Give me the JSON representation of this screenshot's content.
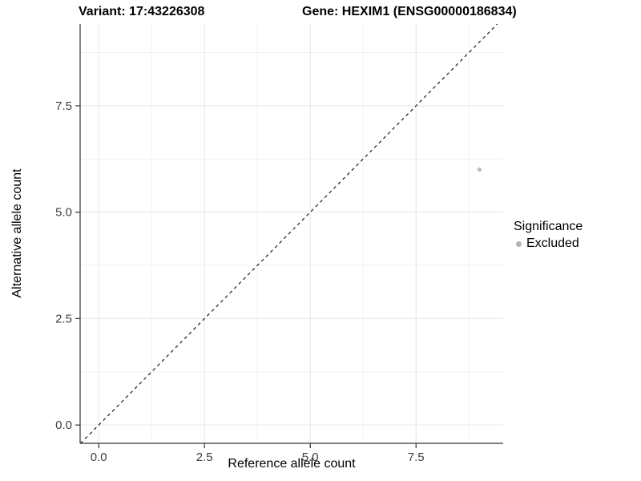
{
  "header": {
    "variant_title": "Variant: 17:43226308",
    "gene_title": "Gene: HEXIM1 (ENSG00000186834)"
  },
  "chart_data": {
    "type": "scatter",
    "xlabel": "Reference allele count",
    "ylabel": "Alternative allele count",
    "xlim": [
      -0.44,
      9.56
    ],
    "ylim": [
      -0.43,
      9.42
    ],
    "x_ticks": [
      0,
      2.5,
      5,
      7.5
    ],
    "x_tick_labels": [
      "0.0",
      "2.5",
      "5.0",
      "7.5"
    ],
    "y_ticks": [
      0,
      2.5,
      5,
      7.5
    ],
    "y_tick_labels": [
      "0.0",
      "2.5",
      "5.0",
      "7.5"
    ],
    "x_minor_ticks": [
      1.25,
      3.75,
      6.25,
      8.75
    ],
    "y_minor_ticks": [
      1.25,
      3.75,
      6.25,
      8.75
    ],
    "grid": "major+minor",
    "series": [
      {
        "name": "Excluded",
        "color": "#bfbfbf",
        "points": [
          {
            "x": 9,
            "y": 6
          }
        ]
      }
    ],
    "reference_line": {
      "kind": "identity",
      "slope": 1,
      "intercept": 0,
      "linetype": "dashed",
      "color": "#1a1a1a"
    },
    "legend": {
      "title": "Significance",
      "position": "right",
      "items": [
        {
          "label": "Excluded",
          "color": "#b3b3b3"
        }
      ]
    },
    "colors": {
      "grid_major": "#e6e6e6",
      "grid_minor": "#f1f1f1",
      "axis_line": "#333333",
      "tick_text": "#404040",
      "background": "#ffffff"
    }
  }
}
